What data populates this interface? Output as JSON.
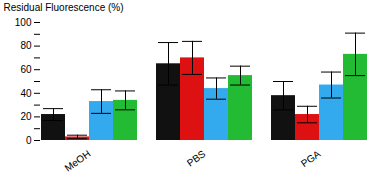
{
  "chart_data": {
    "type": "bar",
    "categories": [
      "MeOH",
      "PBS",
      "PGA"
    ],
    "series": [
      {
        "color": "#111111",
        "values": [
          22,
          65,
          38
        ],
        "errors": [
          5,
          18,
          12
        ]
      },
      {
        "color": "#dd1111",
        "values": [
          3,
          70,
          22
        ],
        "errors": [
          1.5,
          14,
          7
        ]
      },
      {
        "color": "#33aaee",
        "values": [
          33,
          44,
          47
        ],
        "errors": [
          10,
          9,
          11
        ]
      },
      {
        "color": "#22bb33",
        "values": [
          34,
          55,
          73
        ],
        "errors": [
          8,
          8,
          18
        ]
      }
    ],
    "ylabel": "Residual Fluorescence (%)",
    "ylim": [
      0,
      100
    ],
    "yticks": [
      0,
      {
        "value": 10,
        "label": ""
      },
      20,
      {
        "value": 30,
        "label": ""
      },
      40,
      {
        "value": 50,
        "label": ""
      },
      60,
      {
        "value": 70,
        "label": ""
      },
      80,
      {
        "value": 90,
        "label": ""
      },
      100
    ],
    "grid": false
  }
}
